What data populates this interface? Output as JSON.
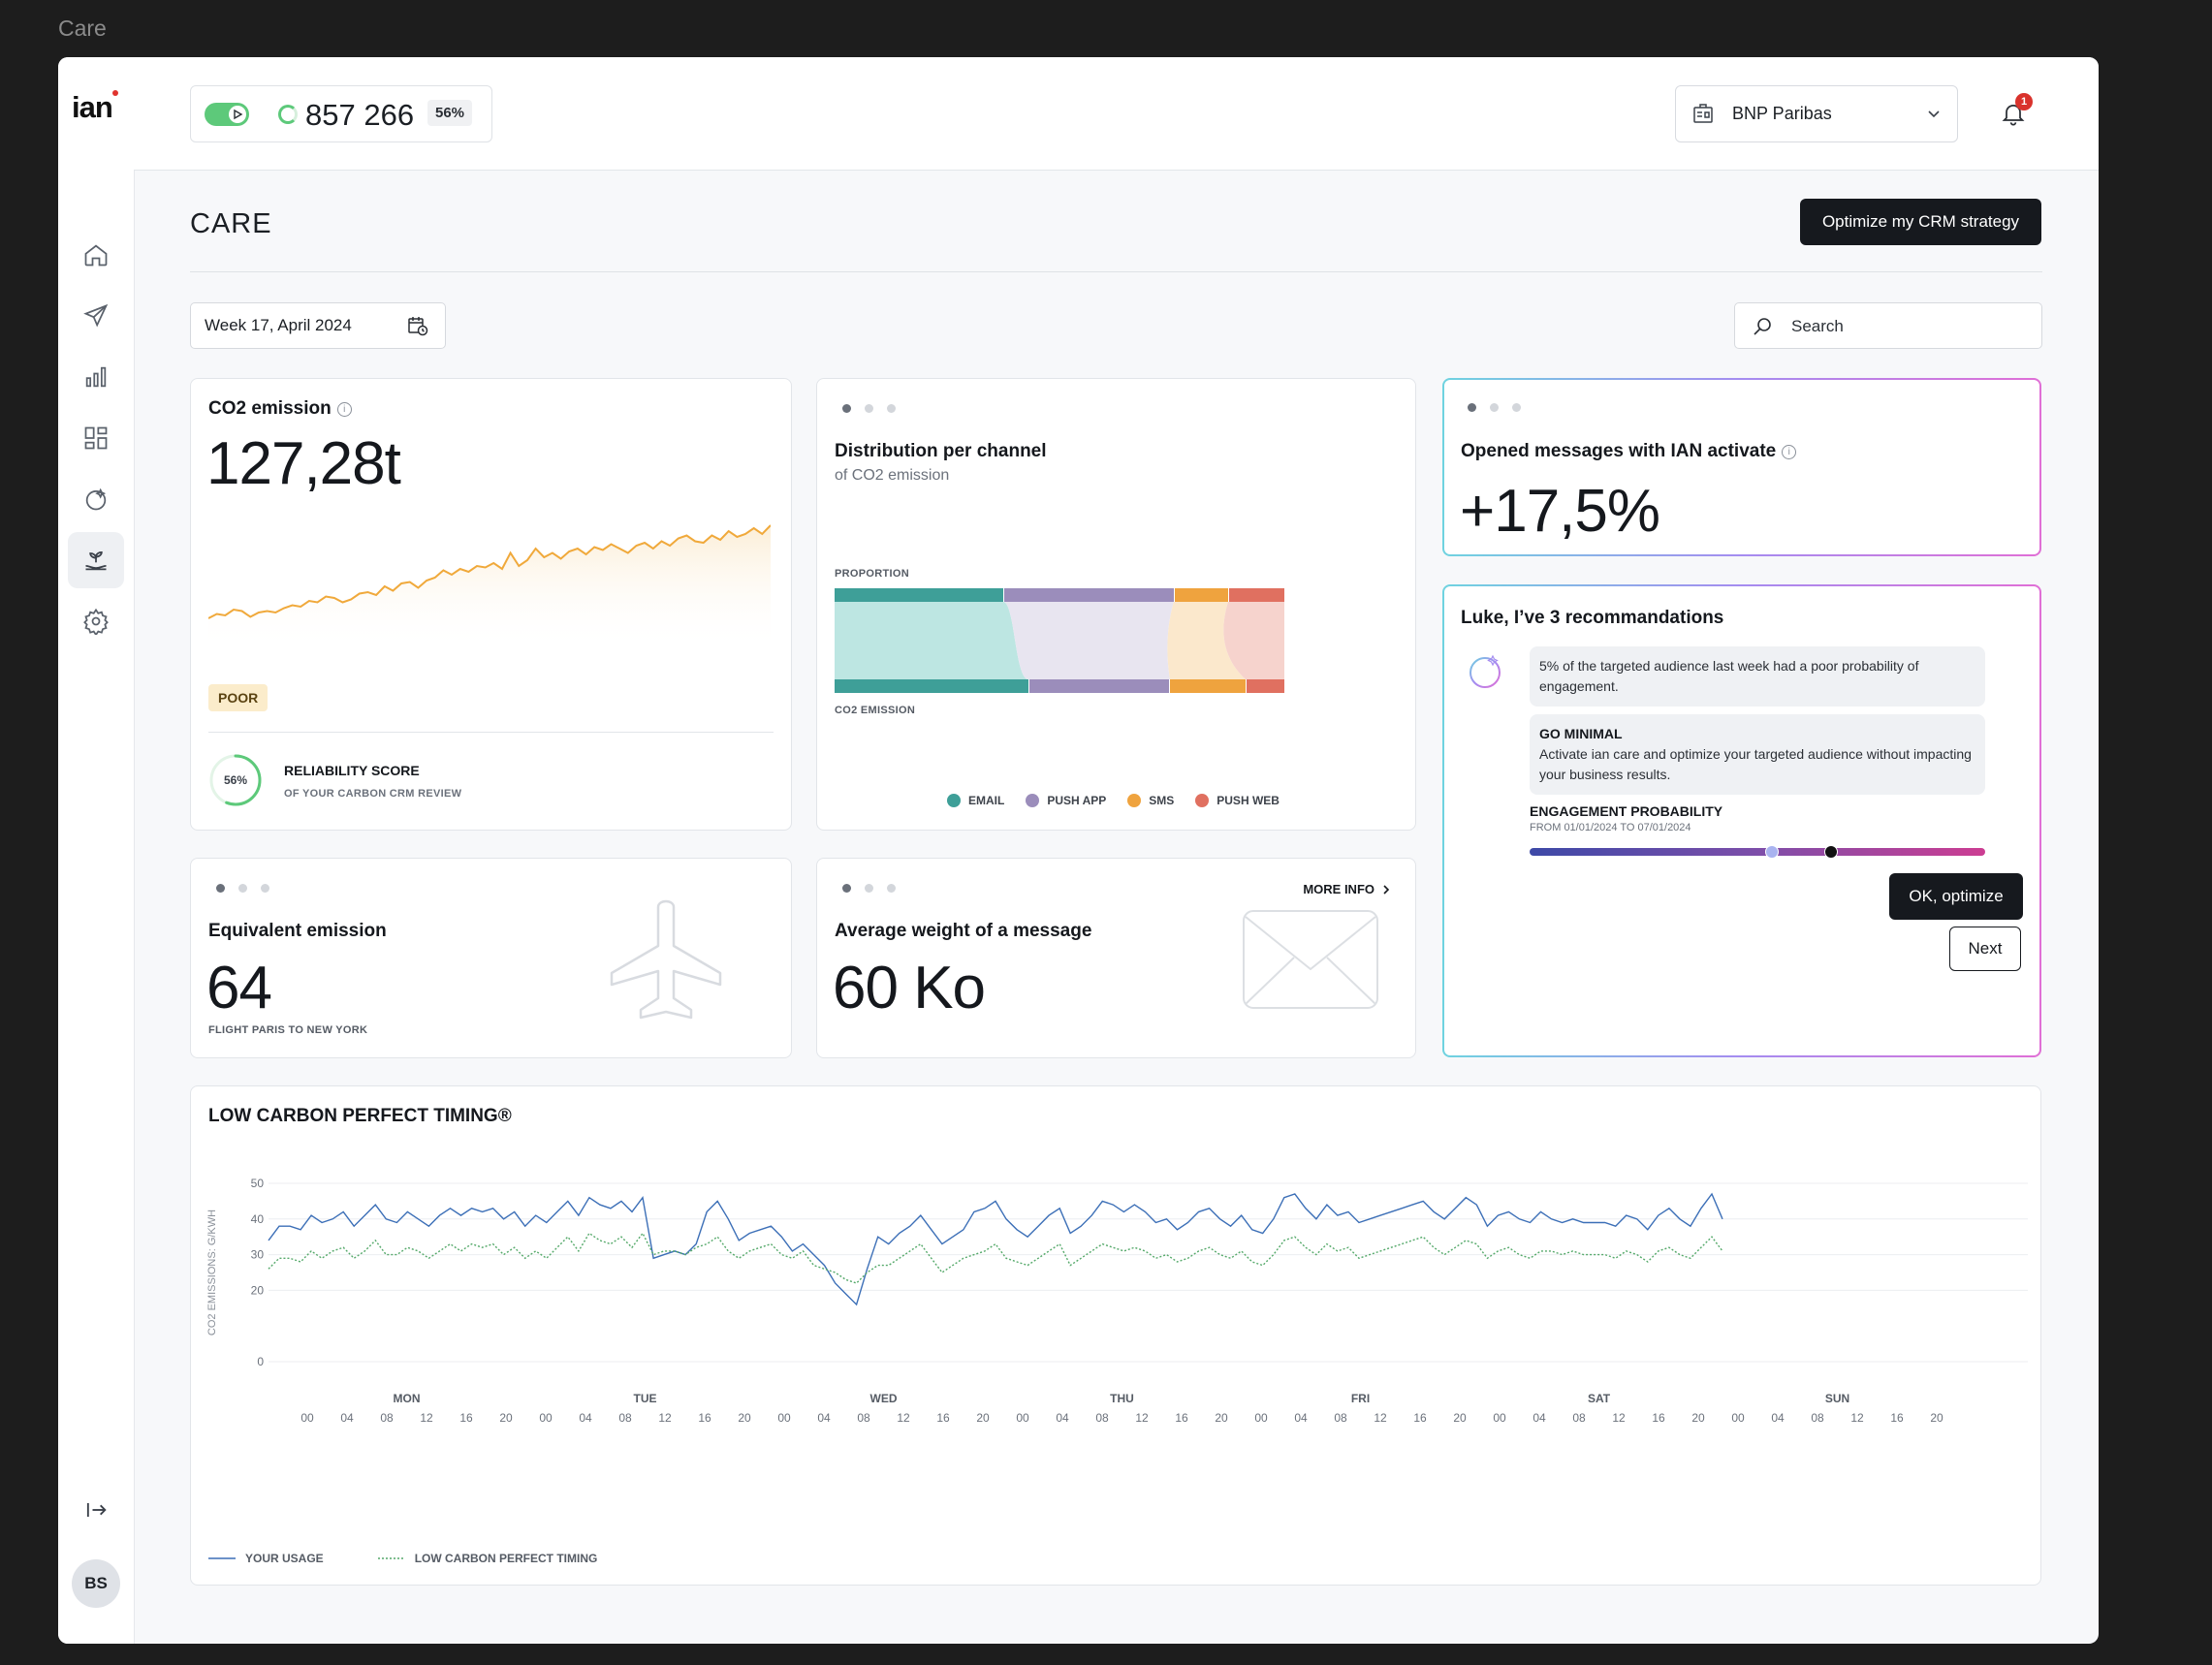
{
  "window": {
    "title": "Care"
  },
  "sidebar": {
    "logo": "ian",
    "items": [
      {
        "id": "home",
        "icon": "home-icon"
      },
      {
        "id": "campaigns",
        "icon": "paper-plane-icon"
      },
      {
        "id": "analytics",
        "icon": "bar-chart-icon"
      },
      {
        "id": "dashboards",
        "icon": "grid-icon"
      },
      {
        "id": "ian-ai",
        "icon": "orb-icon"
      },
      {
        "id": "care",
        "icon": "hand-plant-icon",
        "active": true
      },
      {
        "id": "settings",
        "icon": "gear-icon"
      }
    ],
    "collapse_icon": "expand-sidebar-icon",
    "avatar_initials": "BS"
  },
  "topbar": {
    "counter_value": "857 266",
    "counter_percent": "56%",
    "organization": "BNP Paribas",
    "notifications_count": "1"
  },
  "page": {
    "title": "CARE",
    "primary_action": "Optimize my CRM strategy",
    "date_range": "Week 17, April 2024",
    "search_placeholder": "Search"
  },
  "co2_card": {
    "title": "CO2 emission",
    "value": "127,28t",
    "badge": "POOR",
    "score_value": "56%",
    "score_title": "RELIABILITY SCORE",
    "score_subtitle": "OF YOUR CARBON CRM REVIEW",
    "score_fraction": 0.56,
    "line_color": "#f0a93b",
    "trend": [
      22,
      25,
      24,
      28,
      27,
      23,
      26,
      27,
      26,
      29,
      31,
      30,
      34,
      33,
      37,
      36,
      33,
      35,
      39,
      40,
      38,
      44,
      41,
      46,
      47,
      43,
      48,
      50,
      55,
      52,
      56,
      54,
      58,
      57,
      60,
      56,
      67,
      58,
      62,
      70,
      64,
      67,
      63,
      68,
      70,
      66,
      71,
      69,
      73,
      70,
      67,
      72,
      74,
      70,
      75,
      72,
      77,
      79,
      75,
      74,
      79,
      76,
      82,
      78,
      80,
      84,
      80,
      86
    ]
  },
  "distribution_card": {
    "title": "Distribution per channel",
    "subtitle": "of CO2 emission",
    "top_label": "PROPORTION",
    "bottom_label": "CO2 EMISSION",
    "legend": [
      {
        "name": "EMAIL",
        "color": "#3e9f98"
      },
      {
        "name": "PUSH APP",
        "color": "#9b8dbb"
      },
      {
        "name": "SMS",
        "color": "#efa33e"
      },
      {
        "name": "PUSH WEB",
        "color": "#e07060"
      }
    ]
  },
  "opened_card": {
    "title": "Opened messages with IAN activate",
    "value": "+17,5%"
  },
  "recommendations": {
    "title": "Luke, I’ve 3 recommandations",
    "message": "5% of the targeted audience last week had a poor probability of engagement.",
    "tip_title": "GO MINIMAL",
    "tip_text": "Activate ian care and optimize your targeted audience without impacting your business results.",
    "probability_title": "ENGAGEMENT PROBABILITY",
    "probability_range": "FROM 01/01/2024 TO 07/01/2024",
    "probability_marker_a": 0.53,
    "probability_marker_b": 0.66,
    "ok_label": "OK, optimize",
    "next_label": "Next"
  },
  "equivalent_card": {
    "title": "Equivalent emission",
    "value": "64",
    "caption": "FLIGHT PARIS TO NEW YORK"
  },
  "weight_card": {
    "title": "Average weight of a message",
    "value": "60 Ko",
    "more_info": "MORE INFO"
  },
  "chart_data": {
    "type": "line",
    "title": "LOW CARBON PERFECT TIMING®",
    "ylabel": "CO2 EMISSIONS: G/KWH",
    "ylim": [
      0,
      50
    ],
    "yticks": [
      "50",
      "40",
      "30",
      "20",
      "0"
    ],
    "days": [
      "MON",
      "TUE",
      "WED",
      "THU",
      "FRI",
      "SAT",
      "SUN"
    ],
    "hours": [
      "00",
      "04",
      "08",
      "12",
      "16",
      "20"
    ],
    "series": [
      {
        "name": "YOUR USAGE",
        "color": "#3c6fb7",
        "dashed": false,
        "values": [
          34,
          38,
          38,
          37,
          41,
          39,
          40,
          42,
          38,
          41,
          44,
          40,
          39,
          42,
          40,
          38,
          41,
          43,
          41,
          43,
          42,
          43,
          40,
          42,
          38,
          41,
          39,
          42,
          45,
          41,
          46,
          44,
          43,
          45,
          42,
          46,
          29,
          30,
          31,
          30,
          33,
          42,
          45,
          40,
          34,
          36,
          37,
          38,
          35,
          31,
          33,
          30,
          27,
          22,
          19,
          16,
          26,
          35,
          33,
          36,
          38,
          41,
          37,
          33,
          35,
          37,
          42,
          43,
          45,
          40,
          37,
          35,
          38,
          41,
          43,
          36,
          38,
          41,
          45,
          44,
          42,
          44,
          42,
          39,
          40,
          37,
          39,
          42,
          43,
          40,
          38,
          41,
          37,
          36,
          40,
          46,
          47,
          43,
          40,
          44,
          41,
          42,
          39,
          40,
          41,
          42,
          43,
          44,
          45,
          42,
          40,
          43,
          46,
          44,
          38,
          41,
          42,
          40,
          39,
          42,
          40,
          39,
          40,
          39,
          39,
          39,
          38,
          41,
          40,
          37,
          41,
          43,
          40,
          38,
          43,
          47,
          40
        ],
        "last_index": 142
      },
      {
        "name": "LOW CARBON PERFECT TIMING",
        "color": "#55a96a",
        "dashed": true,
        "values": [
          26,
          29,
          29,
          28,
          31,
          29,
          31,
          32,
          29,
          31,
          34,
          30,
          30,
          32,
          31,
          29,
          31,
          33,
          31,
          33,
          32,
          33,
          30,
          32,
          29,
          31,
          29,
          32,
          35,
          31,
          36,
          34,
          33,
          35,
          32,
          36,
          30,
          31,
          31,
          30,
          32,
          33,
          35,
          31,
          29,
          31,
          32,
          33,
          30,
          29,
          31,
          27,
          26,
          25,
          23,
          22,
          25,
          27,
          27,
          29,
          31,
          33,
          29,
          25,
          27,
          29,
          30,
          31,
          33,
          29,
          28,
          27,
          29,
          31,
          33,
          27,
          29,
          31,
          33,
          32,
          31,
          32,
          31,
          29,
          30,
          28,
          29,
          31,
          32,
          30,
          29,
          31,
          28,
          27,
          30,
          34,
          35,
          32,
          30,
          33,
          31,
          32,
          29,
          30,
          31,
          32,
          33,
          34,
          35,
          32,
          30,
          32,
          34,
          33,
          29,
          31,
          32,
          30,
          29,
          31,
          31,
          30,
          31,
          30,
          30,
          30,
          29,
          31,
          30,
          28,
          31,
          32,
          30,
          29,
          32,
          35,
          31
        ],
        "last_index": 142
      }
    ],
    "grid": true,
    "legend_position": "bottom-left"
  }
}
